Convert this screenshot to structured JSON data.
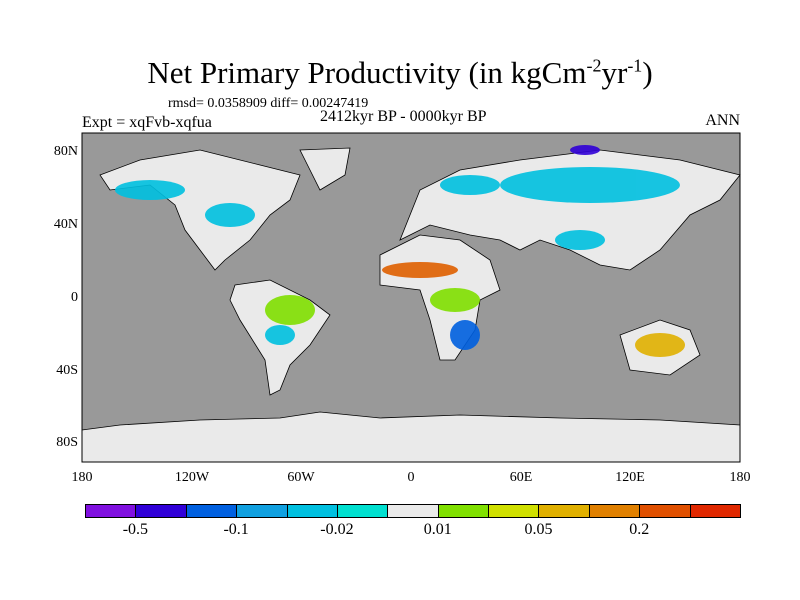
{
  "title": "Net Primary Productivity (in kgCm",
  "title_sup1": "-2",
  "title_mid": "yr",
  "title_sup2": "-1",
  "title_end": ")",
  "stats": "rmsd= 0.0358909 diff= 0.00247419",
  "experiment": "Expt = xqFvb-xqfua",
  "period": "2412kyr BP - 0000kyr BP",
  "season": "ANN",
  "lat_labels": [
    "80N",
    "40N",
    "0",
    "40S",
    "80S"
  ],
  "lon_labels": [
    "180",
    "120W",
    "60W",
    "0",
    "60E",
    "120E",
    "180"
  ],
  "colorbar": {
    "colors": [
      "#8010e0",
      "#3000d8",
      "#0060e0",
      "#10a0e0",
      "#00c0e0",
      "#00e0d0",
      "#eaeaea",
      "#80e000",
      "#d0e000",
      "#e0b000",
      "#e08000",
      "#e05000",
      "#e02800"
    ],
    "labels": [
      "-0.5",
      "-0.1",
      "-0.02",
      "0.01",
      "0.05",
      "0.2"
    ]
  },
  "colors": {
    "ocean": "#999999",
    "land_zero": "#eaeaea"
  }
}
